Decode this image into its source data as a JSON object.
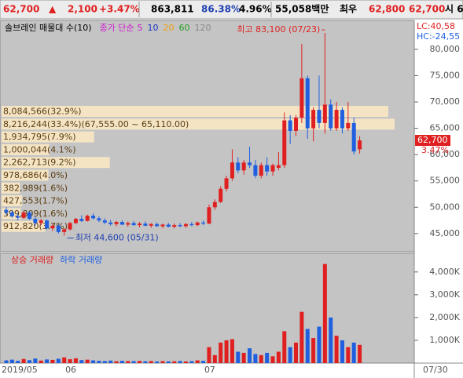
{
  "header": {
    "price": "62,700",
    "arrow": "▲",
    "change": "2,100",
    "change_pct": "+3.47%",
    "volume": "863,811",
    "ratio": "86.38%",
    "turnover": "4.96%",
    "amount": "55,058백만",
    "best_label": "최우",
    "ask": "62,800",
    "bid": "62,700",
    "open_label": "시 6"
  },
  "chart_data": [
    {
      "type": "candlestick",
      "legend": {
        "name": "솔브레인 매물대 수(10)",
        "ma_label": "종가 단순",
        "ma_periods": [
          "5",
          "10",
          "20",
          "60",
          "120"
        ],
        "ma_colors": [
          "#d01ad0",
          "#1a32c8",
          "#f0a010",
          "#20a020",
          "#888888"
        ]
      },
      "up_color": "#e02020",
      "down_color": "#1f5fe0",
      "categories": [
        "2019/05",
        null,
        null,
        null,
        null,
        null,
        null,
        null,
        null,
        null,
        null,
        "06",
        null,
        null,
        null,
        null,
        null,
        null,
        null,
        null,
        null,
        null,
        null,
        null,
        null,
        null,
        null,
        null,
        null,
        null,
        null,
        null,
        null,
        null,
        null,
        "07",
        null,
        null,
        null,
        null,
        null,
        null,
        null,
        null,
        null,
        null,
        null,
        null,
        null,
        null,
        null,
        null,
        null,
        null,
        null,
        null,
        null,
        null,
        null,
        null,
        null,
        null
      ],
      "x_end_label": "07/30",
      "open": [
        49500,
        49000,
        48300,
        48000,
        49000,
        47800,
        47000,
        47500,
        46000,
        46500,
        45300,
        45800,
        47000,
        47800,
        47400,
        48400,
        47900,
        47500,
        47100,
        46800,
        47200,
        46700,
        47000,
        46600,
        46900,
        46500,
        46800,
        46400,
        46700,
        46300,
        46600,
        46400,
        46800,
        46600,
        47100,
        46900,
        50000,
        51000,
        53500,
        55500,
        58500,
        57000,
        58500,
        58000,
        56000,
        58000,
        56800,
        57500,
        58000,
        66500,
        64500,
        67000,
        74500,
        65000,
        68500,
        66000,
        69500,
        65000,
        68500,
        65000,
        66000,
        61000
      ],
      "high": [
        50000,
        49500,
        48800,
        49200,
        49300,
        48200,
        47800,
        47700,
        46800,
        46800,
        46000,
        47200,
        48000,
        48500,
        48600,
        48800,
        48300,
        47900,
        47600,
        47400,
        47500,
        47300,
        47400,
        47200,
        47300,
        47000,
        47100,
        46900,
        47000,
        46900,
        47000,
        47000,
        47200,
        47300,
        47500,
        50500,
        51500,
        54000,
        56000,
        61000,
        59500,
        59000,
        61500,
        59000,
        58500,
        59500,
        58300,
        60500,
        68000,
        67500,
        67500,
        81000,
        75000,
        69000,
        75000,
        83100,
        70500,
        70000,
        69000,
        70000,
        67000,
        63500
      ],
      "low": [
        48500,
        48000,
        47500,
        47800,
        47600,
        46500,
        46600,
        45800,
        45500,
        45000,
        44600,
        45600,
        46800,
        47200,
        47300,
        47700,
        47200,
        46800,
        46500,
        46400,
        46600,
        46300,
        46500,
        46200,
        46400,
        46100,
        46300,
        46000,
        46200,
        46000,
        46200,
        46100,
        46400,
        46400,
        46600,
        46800,
        49500,
        50800,
        53000,
        55000,
        56500,
        56200,
        57500,
        55500,
        55500,
        56000,
        56000,
        57000,
        57500,
        62000,
        63500,
        66000,
        63000,
        62500,
        65000,
        64000,
        64500,
        64500,
        64000,
        64500,
        60000,
        60200
      ],
      "close": [
        49000,
        48300,
        48000,
        49000,
        47800,
        47000,
        47500,
        46000,
        46500,
        45300,
        45800,
        47000,
        47800,
        47400,
        48400,
        47900,
        47500,
        47100,
        46800,
        47200,
        46700,
        47000,
        46600,
        46900,
        46500,
        46800,
        46400,
        46700,
        46300,
        46600,
        46400,
        46800,
        46600,
        47100,
        46900,
        50000,
        51000,
        53500,
        55500,
        58500,
        57000,
        58500,
        58000,
        56000,
        58000,
        56800,
        58000,
        58000,
        66500,
        64500,
        67000,
        74500,
        65000,
        68500,
        66000,
        69500,
        65000,
        68500,
        65000,
        66000,
        60600,
        62700
      ],
      "ylim": [
        41700,
        84900
      ],
      "yticks": [
        {
          "value": 45000,
          "label": "45,000"
        },
        {
          "value": 50000,
          "label": "50,000"
        },
        {
          "value": 55000,
          "label": "55,000"
        },
        {
          "value": 60000,
          "label": "60,000"
        },
        {
          "value": 65000,
          "label": "65,000"
        },
        {
          "value": 70000,
          "label": "70,000"
        },
        {
          "value": 75000,
          "label": "75,000"
        },
        {
          "value": 80000,
          "label": "80,000"
        }
      ],
      "grid": false,
      "high_annotation": "최고 83,100 (07/23)",
      "low_annotation": "최저 44,600 (05/31)",
      "last_price_label": "62,700",
      "last_change_label": "3.47%",
      "lc_label": "LC:40,58",
      "hc_label": "HC:-24,55",
      "volume_profile": {
        "color": "#f4e4c4",
        "text_color": "#5a3c10",
        "values": [
          8084566,
          8216244,
          1934795,
          1000044,
          2262713,
          978686,
          382989,
          427553,
          399809,
          912820
        ],
        "value_labels": [
          "8,084,566(32.9%)",
          "8,216,244(33.4%)(67,555.00 ~ 65,110.00)",
          "1,934,795(7.9%)",
          "1,000,044(4.1%)",
          "2,262,713(9.2%)",
          "978,686(4.0%)",
          "382,989(1.6%)",
          "427,553(1.7%)",
          "399,809(1.6%)",
          "912,820(3.7%)"
        ]
      }
    },
    {
      "type": "bar",
      "series": [
        {
          "name": "상승 거래량",
          "color": "#e02020"
        },
        {
          "name": "하락 거래량",
          "color": "#1f5fe0"
        }
      ],
      "values": [
        120,
        150,
        100,
        180,
        130,
        200,
        110,
        160,
        140,
        190,
        250,
        170,
        210,
        130,
        150,
        120,
        100,
        90,
        110,
        80,
        100,
        90,
        85,
        95,
        80,
        90,
        70,
        85,
        75,
        80,
        90,
        70,
        85,
        120,
        100,
        700,
        350,
        900,
        1000,
        1050,
        500,
        450,
        650,
        400,
        350,
        450,
        300,
        500,
        1400,
        700,
        900,
        2250,
        1500,
        1100,
        1600,
        4350,
        2000,
        1200,
        1000,
        700,
        900,
        800
      ],
      "ylim": [
        0,
        4750
      ],
      "yticks": [
        {
          "value": 1000,
          "label": "1,000K"
        },
        {
          "value": 2000,
          "label": "2,000K"
        },
        {
          "value": 3000,
          "label": "3,000K"
        },
        {
          "value": 4000,
          "label": "4,000K"
        }
      ],
      "grid": false
    }
  ]
}
